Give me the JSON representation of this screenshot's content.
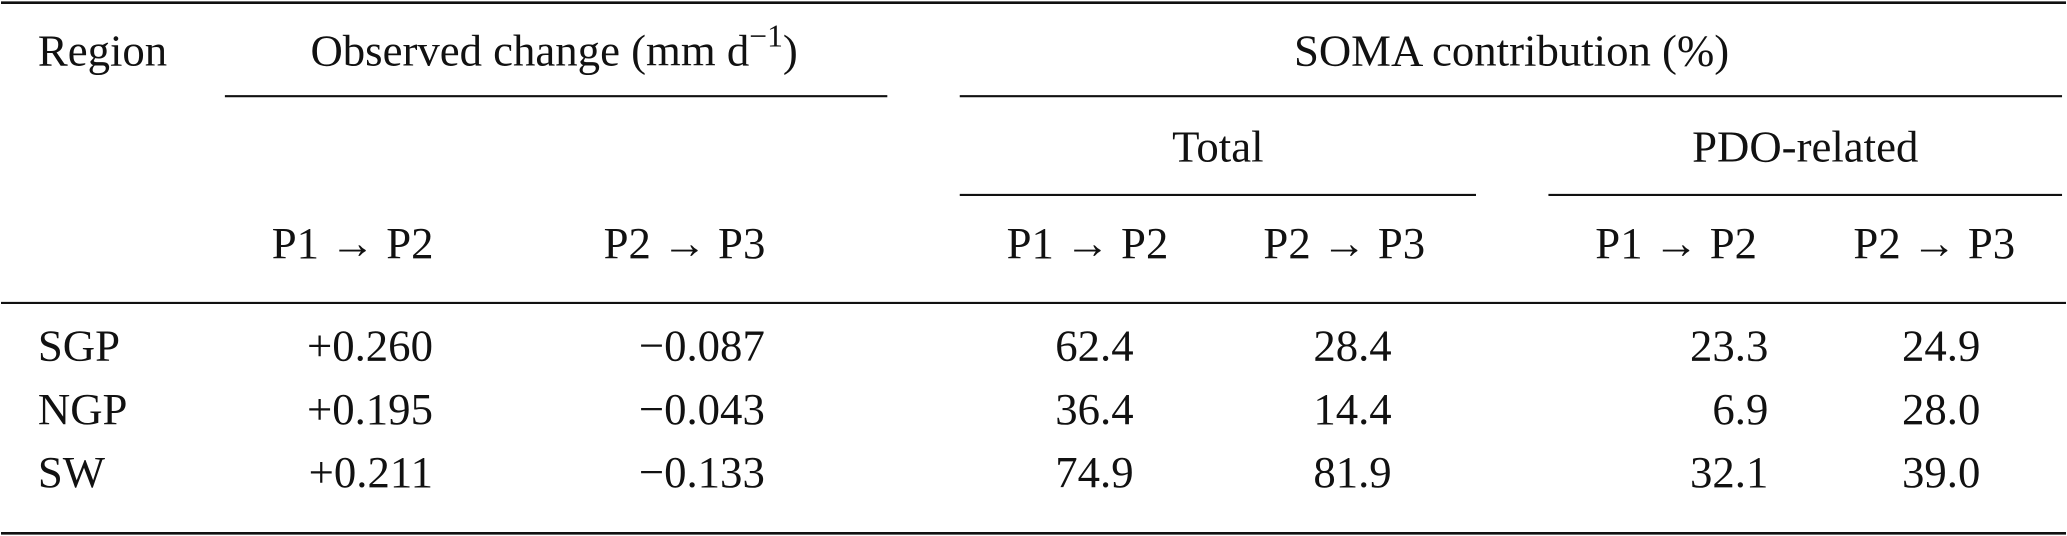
{
  "table": {
    "header": {
      "region": "Region",
      "observed": {
        "text": "Observed change (mm d",
        "sup": "−1",
        "close": ")"
      },
      "soma": "SOMA contribution (%)",
      "total": "Total",
      "pdo": "PDO-related",
      "periods": [
        "P1 → P2",
        "P2 → P3",
        "P1 → P2",
        "P2 → P3",
        "P1 → P2",
        "P2 → P3"
      ]
    },
    "rows": [
      [
        "SGP",
        "+0.260",
        "−0.087",
        "62.4",
        "28.4",
        "23.3",
        "24.9"
      ],
      [
        "NGP",
        "+0.195",
        "−0.043",
        "36.4",
        "14.4",
        "6.9",
        "28.0"
      ],
      [
        "SW",
        "+0.211",
        "−0.133",
        "74.9",
        "81.9",
        "32.1",
        "39.0"
      ]
    ]
  }
}
